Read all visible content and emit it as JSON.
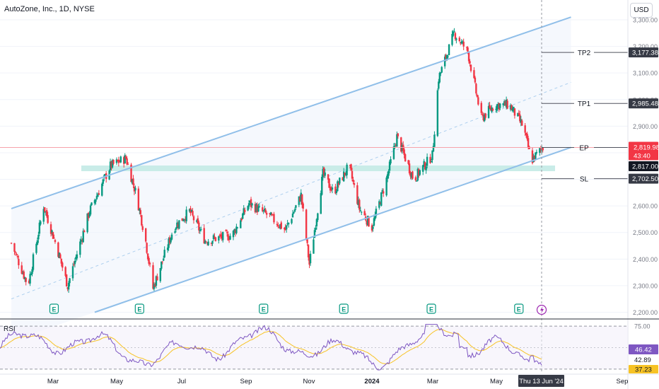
{
  "header": {
    "title": "AutoZone, Inc., 1D, NYSE",
    "currency": "USD"
  },
  "colors": {
    "up": "#089981",
    "down": "#f23645",
    "channel": "#90bfe9",
    "zone": "#c9ece8",
    "rsi": "#7e57c2",
    "rsi_ma": "#f7c325",
    "ep_label": "#f23645",
    "label_dark": "#363a45"
  },
  "chart_data": {
    "type": "candlestick",
    "symbol": "AutoZone, Inc.",
    "interval": "1D",
    "exchange": "NYSE",
    "x_labels": [
      "Mar",
      "May",
      "Jul",
      "Sep",
      "Nov",
      "2024",
      "Mar",
      "May",
      "Sep"
    ],
    "y_ticks": [
      3300,
      3200,
      3100,
      3000,
      2900,
      2800,
      2700,
      2600,
      2500,
      2400,
      2300,
      2200
    ],
    "y_tick_labels": [
      "3,300.00",
      "3,200.00",
      "3,100.00",
      "3,000.00",
      "2,900.00",
      "2,800.00",
      "2,700.00",
      "2,600.00",
      "2,500.00",
      "2,400.00",
      "2,300.00",
      "2,200.00"
    ],
    "ylim": [
      2180,
      3330
    ],
    "price_path": [
      {
        "date": "2023-01-20",
        "price": 2460
      },
      {
        "date": "2023-02-05",
        "price": 2300
      },
      {
        "date": "2023-02-20",
        "price": 2600
      },
      {
        "date": "2023-03-05",
        "price": 2440
      },
      {
        "date": "2023-03-15",
        "price": 2300
      },
      {
        "date": "2023-04-05",
        "price": 2580
      },
      {
        "date": "2023-04-25",
        "price": 2750
      },
      {
        "date": "2023-05-10",
        "price": 2780
      },
      {
        "date": "2023-05-20",
        "price": 2640
      },
      {
        "date": "2023-05-28",
        "price": 2490
      },
      {
        "date": "2023-06-05",
        "price": 2290
      },
      {
        "date": "2023-06-25",
        "price": 2520
      },
      {
        "date": "2023-07-10",
        "price": 2580
      },
      {
        "date": "2023-07-25",
        "price": 2470
      },
      {
        "date": "2023-08-20",
        "price": 2490
      },
      {
        "date": "2023-09-05",
        "price": 2610
      },
      {
        "date": "2023-09-25",
        "price": 2560
      },
      {
        "date": "2023-10-10",
        "price": 2510
      },
      {
        "date": "2023-10-25",
        "price": 2640
      },
      {
        "date": "2023-11-02",
        "price": 2380
      },
      {
        "date": "2023-11-15",
        "price": 2720
      },
      {
        "date": "2023-11-25",
        "price": 2650
      },
      {
        "date": "2023-12-10",
        "price": 2750
      },
      {
        "date": "2023-12-20",
        "price": 2590
      },
      {
        "date": "2024-01-01",
        "price": 2520
      },
      {
        "date": "2024-01-15",
        "price": 2700
      },
      {
        "date": "2024-01-25",
        "price": 2860
      },
      {
        "date": "2024-02-10",
        "price": 2700
      },
      {
        "date": "2024-02-28",
        "price": 2790
      },
      {
        "date": "2024-03-05",
        "price": 3080
      },
      {
        "date": "2024-03-20",
        "price": 3250
      },
      {
        "date": "2024-04-02",
        "price": 3180
      },
      {
        "date": "2024-04-15",
        "price": 2930
      },
      {
        "date": "2024-04-28",
        "price": 2980
      },
      {
        "date": "2024-05-12",
        "price": 2980
      },
      {
        "date": "2024-05-25",
        "price": 2900
      },
      {
        "date": "2024-06-02",
        "price": 2770
      },
      {
        "date": "2024-06-13",
        "price": 2819.98
      }
    ],
    "levels": [
      {
        "name": "TP2",
        "price": 3177.38,
        "label": "3,177.38"
      },
      {
        "name": "TP1",
        "price": 2985.48,
        "label": "2,985.48"
      },
      {
        "name": "EP",
        "price": 2819.98,
        "label": "2,819.98",
        "countdown": "43:40"
      },
      {
        "name": "SL",
        "price": 2702.5,
        "label": "2,702.50"
      }
    ],
    "support_zone_label": "2,817.00",
    "channel": {
      "upper": [
        {
          "date": "2023-01-20",
          "price": 2590
        },
        {
          "date": "2024-07-10",
          "price": 3310
        }
      ],
      "lower": [
        {
          "date": "2023-04-10",
          "price": 2200
        },
        {
          "date": "2024-07-10",
          "price": 2820
        }
      ],
      "mid": [
        {
          "date": "2023-01-20",
          "price": 2250
        },
        {
          "date": "2024-07-10",
          "price": 3065
        }
      ]
    },
    "earnings_markers": [
      "2023-03-02",
      "2023-05-23",
      "2023-09-19",
      "2023-12-05",
      "2024-02-27",
      "2024-05-21"
    ],
    "crosshair_date_label": "Thu 13 Jun '24",
    "rsi": {
      "label": "RSI",
      "levels": [
        {
          "value": 75,
          "label": "75.00"
        },
        {
          "value": 25
        }
      ],
      "current": "46.42",
      "ma_value": "42.89",
      "low_label": "37.23",
      "ylim": [
        20,
        80
      ]
    }
  }
}
